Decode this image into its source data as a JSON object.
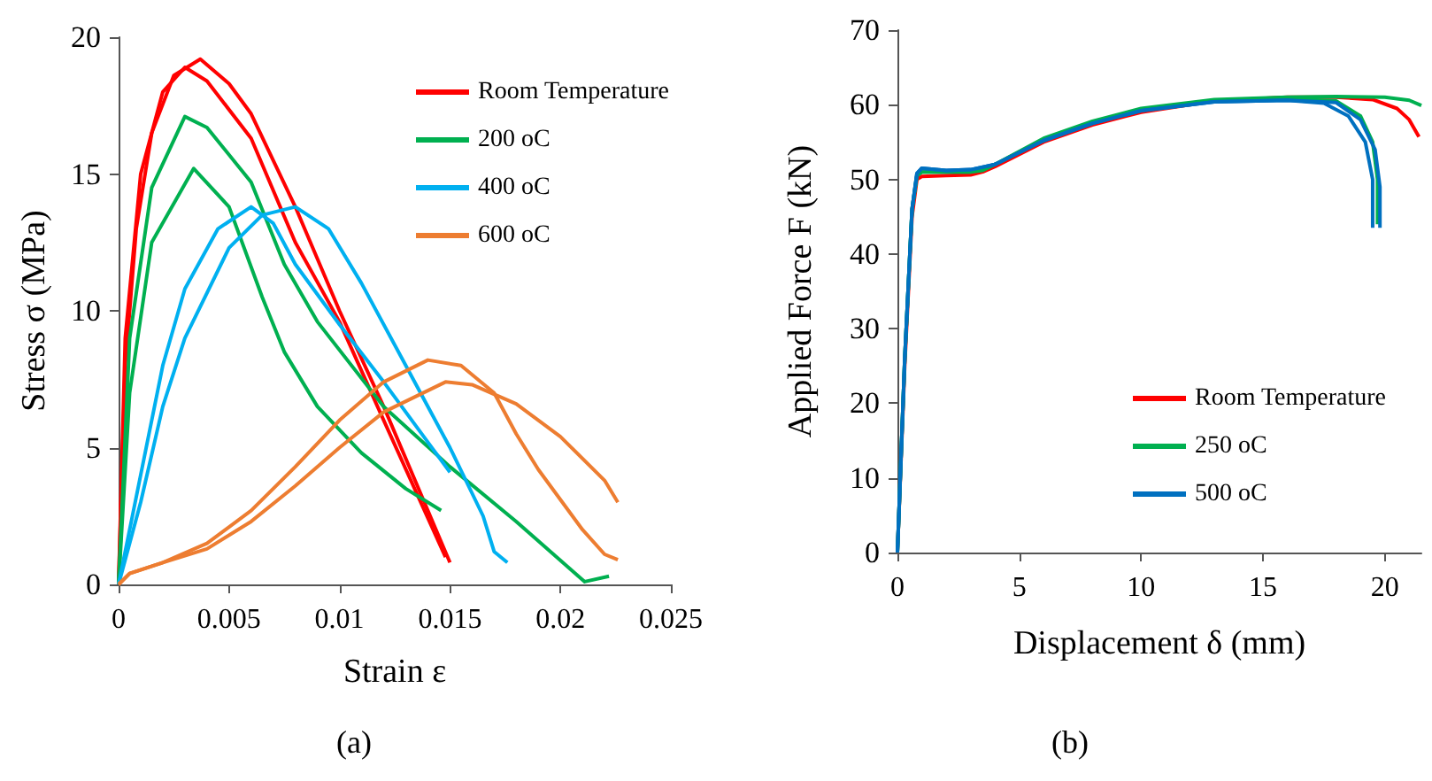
{
  "chart_data": [
    {
      "type": "line",
      "xlabel": "Strain ε",
      "ylabel": "Stress σ (MPa)",
      "annotations": [
        "(a)"
      ],
      "xlim": [
        0,
        0.025
      ],
      "xticks": [
        0,
        0.005,
        0.01,
        0.015,
        0.02,
        0.025
      ],
      "ylim": [
        0,
        20
      ],
      "yticks": [
        0,
        5,
        10,
        15,
        20
      ],
      "grid": false,
      "legend": "top right",
      "marker": "none",
      "series": [
        {
          "name": "Room Temperature",
          "color": "#ff0000",
          "x": [
            0,
            0.0003,
            0.0008,
            0.0015,
            0.0025,
            0.0037,
            0.005,
            0.006,
            0.008,
            0.01,
            0.012,
            0.015
          ],
          "values": [
            0,
            8,
            13,
            16.5,
            18.6,
            19.2,
            18.3,
            17.2,
            13.8,
            10,
            6.5,
            0.8
          ]
        },
        {
          "color": "#ff0000",
          "x": [
            0,
            0.0003,
            0.001,
            0.002,
            0.003,
            0.004,
            0.006,
            0.008,
            0.01,
            0.012,
            0.0148
          ],
          "values": [
            0,
            9,
            15,
            18,
            18.9,
            18.4,
            16.3,
            12.5,
            9.6,
            6,
            1
          ]
        },
        {
          "name": "200 oC",
          "color": "#00b050",
          "x": [
            0,
            0.0005,
            0.0015,
            0.003,
            0.004,
            0.006,
            0.0075,
            0.009,
            0.012,
            0.015,
            0.018,
            0.0211,
            0.0222
          ],
          "values": [
            0,
            9,
            14.5,
            17.1,
            16.7,
            14.7,
            11.7,
            9.6,
            6.5,
            4.3,
            2.3,
            0.1,
            0.3
          ]
        },
        {
          "color": "#00b050",
          "x": [
            0,
            0.0005,
            0.0015,
            0.0034,
            0.005,
            0.0065,
            0.0075,
            0.009,
            0.011,
            0.013,
            0.0146
          ],
          "values": [
            0,
            7,
            12.5,
            15.2,
            13.8,
            10.5,
            8.5,
            6.5,
            4.8,
            3.5,
            2.7
          ]
        },
        {
          "name": "400 oC",
          "color": "#00b0f0",
          "x": [
            0,
            0.001,
            0.002,
            0.003,
            0.0045,
            0.006,
            0.007,
            0.008,
            0.01,
            0.012,
            0.014,
            0.015
          ],
          "values": [
            0,
            4,
            8,
            10.8,
            13,
            13.8,
            13.2,
            11.7,
            9.5,
            7.4,
            5.2,
            4.1
          ]
        },
        {
          "color": "#00b0f0",
          "x": [
            0,
            0.001,
            0.002,
            0.003,
            0.005,
            0.0065,
            0.008,
            0.0095,
            0.011,
            0.013,
            0.015,
            0.0165,
            0.017,
            0.0176
          ],
          "values": [
            0,
            3,
            6.5,
            9,
            12.3,
            13.5,
            13.8,
            13,
            11,
            8,
            5,
            2.5,
            1.2,
            0.8
          ]
        },
        {
          "name": "600 oC",
          "color": "#ed7d31",
          "x": [
            0,
            0.0005,
            0.002,
            0.004,
            0.006,
            0.008,
            0.01,
            0.012,
            0.014,
            0.0155,
            0.017,
            0.018,
            0.019,
            0.021,
            0.022,
            0.0226
          ],
          "values": [
            0,
            0.4,
            0.8,
            1.5,
            2.7,
            4.3,
            6,
            7.4,
            8.2,
            8,
            7,
            5.5,
            4.2,
            2,
            1.1,
            0.9
          ]
        },
        {
          "color": "#ed7d31",
          "x": [
            0,
            0.0005,
            0.002,
            0.004,
            0.006,
            0.008,
            0.01,
            0.012,
            0.0148,
            0.016,
            0.018,
            0.02,
            0.022,
            0.0226
          ],
          "values": [
            0,
            0.4,
            0.8,
            1.3,
            2.3,
            3.6,
            5,
            6.3,
            7.4,
            7.3,
            6.6,
            5.4,
            3.8,
            3
          ]
        }
      ]
    },
    {
      "type": "line",
      "xlabel": "Displacement δ (mm)",
      "ylabel": "Applied Force F (kN)",
      "annotations": [
        "(b)"
      ],
      "xlim": [
        0,
        21.5
      ],
      "xticks": [
        0,
        5,
        10,
        15,
        20
      ],
      "ylim": [
        0,
        70
      ],
      "yticks": [
        0,
        10,
        20,
        30,
        40,
        50,
        60,
        70
      ],
      "grid": false,
      "legend": "bottom right",
      "marker": "none",
      "series": [
        {
          "name": "Room Temperature",
          "color": "#ff0000",
          "x": [
            0,
            0.3,
            0.6,
            0.8,
            1,
            2,
            3,
            3.5,
            4,
            6,
            8,
            10,
            13,
            16,
            18,
            19.5,
            20.5,
            21,
            21.4
          ],
          "values": [
            0,
            25,
            45,
            50,
            50.4,
            50.5,
            50.6,
            51,
            51.7,
            55,
            57.3,
            59,
            60.5,
            61,
            61,
            60.7,
            59.5,
            58,
            55.7
          ]
        },
        {
          "name": "250 oC",
          "color": "#00b050",
          "x": [
            0,
            0.3,
            0.6,
            0.8,
            1,
            2,
            3,
            3.5,
            4,
            6,
            8,
            10,
            13,
            16,
            18,
            20,
            21,
            21.5
          ],
          "values": [
            0,
            26,
            46,
            50.5,
            51,
            51,
            51,
            51.2,
            52,
            55.5,
            57.8,
            59.5,
            60.7,
            61,
            61.1,
            61,
            60.6,
            59.9
          ]
        },
        {
          "color": "#00b050",
          "x": [
            0,
            0.3,
            0.6,
            0.8,
            1,
            2,
            3,
            4,
            6,
            8,
            10,
            13,
            16,
            18,
            19,
            19.5,
            19.7,
            19.7
          ],
          "values": [
            0,
            26,
            46,
            50.5,
            51,
            51,
            51,
            52,
            55.3,
            57.6,
            59.3,
            60.5,
            60.8,
            60.5,
            58.5,
            55,
            50,
            44
          ]
        },
        {
          "name": "500 oC",
          "color": "#0070c0",
          "x": [
            0,
            0.3,
            0.6,
            0.8,
            1,
            2,
            3,
            4,
            6,
            8,
            10,
            13,
            16,
            17.5,
            18.5,
            19.2,
            19.5,
            19.5
          ],
          "values": [
            0,
            26,
            46,
            50.8,
            51.5,
            51.2,
            51.3,
            52,
            55.2,
            57.5,
            59.2,
            60.4,
            60.6,
            60.2,
            58.5,
            55,
            50,
            43.5
          ]
        },
        {
          "color": "#0070c0",
          "x": [
            0,
            0.3,
            0.6,
            0.8,
            1,
            2,
            3,
            4,
            6,
            8,
            10,
            13,
            16,
            18,
            19,
            19.6,
            19.8,
            19.8
          ],
          "values": [
            0,
            26,
            46,
            50.8,
            51.5,
            51.2,
            51.3,
            52,
            55.2,
            57.5,
            59.2,
            60.4,
            60.6,
            60.3,
            58,
            54,
            49,
            43.5
          ]
        }
      ]
    }
  ]
}
